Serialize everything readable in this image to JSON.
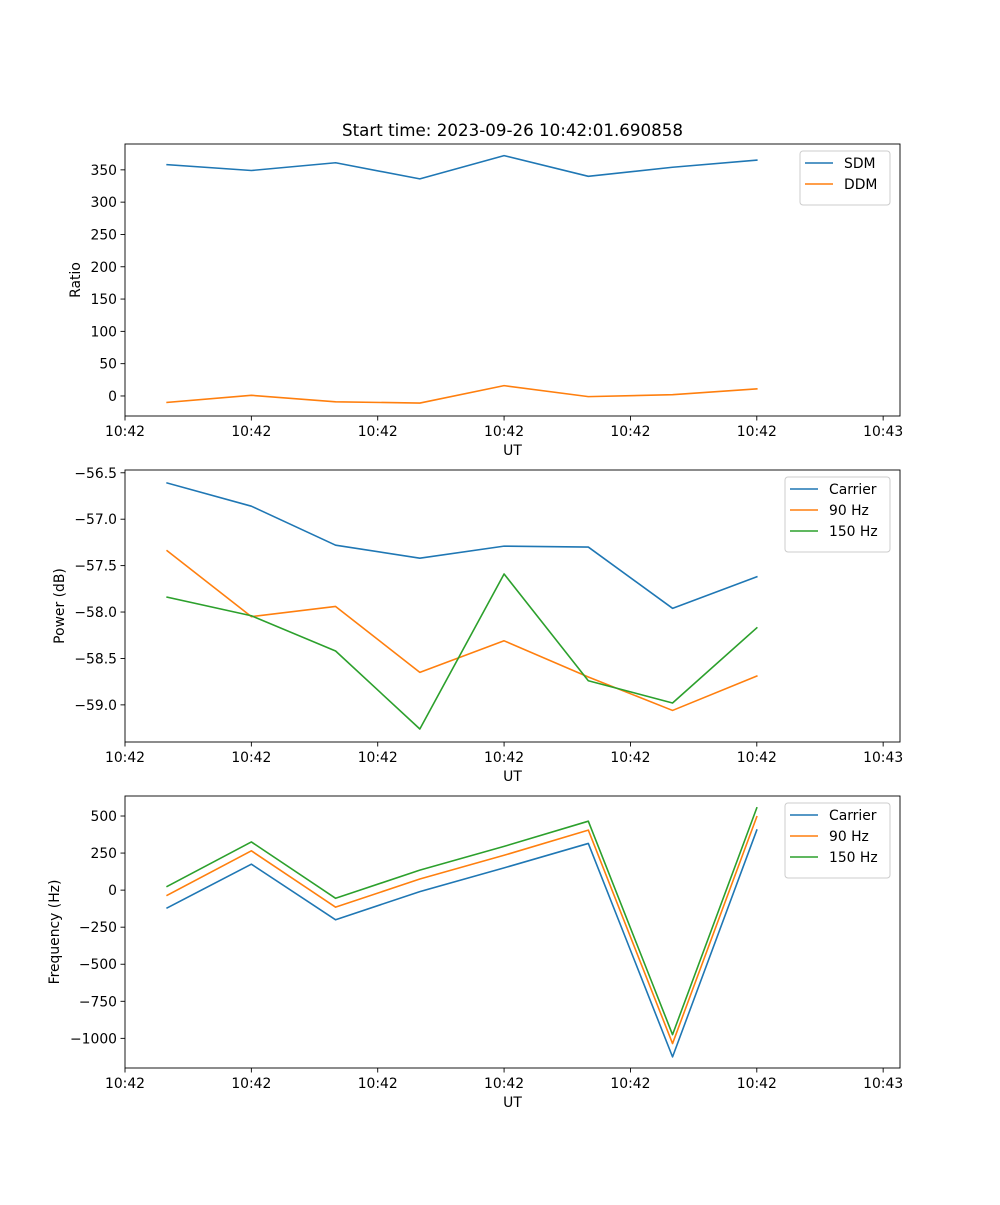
{
  "figure_title": "Start time: 2023-09-26 10:42:01.690858",
  "colors": {
    "blue": "#1f77b4",
    "orange": "#ff7f0e",
    "green": "#2ca02c"
  },
  "chart_data": [
    {
      "type": "line",
      "title": "Start time: 2023-09-26 10:42:01.690858",
      "xlabel": "UT",
      "ylabel": "Ratio",
      "xlim": [
        0,
        9.2
      ],
      "ylim": [
        -31,
        390
      ],
      "x": [
        0.5,
        1.5,
        2.5,
        3.5,
        4.5,
        5.5,
        6.5,
        7.5
      ],
      "xticks": [
        0,
        1.5,
        3,
        4.5,
        6,
        7.5,
        9
      ],
      "xtick_labels": [
        "10:42",
        "10:42",
        "10:42",
        "10:42",
        "10:42",
        "10:42",
        "10:43"
      ],
      "yticks": [
        0,
        50,
        100,
        150,
        200,
        250,
        300,
        350
      ],
      "ytick_labels": [
        "0",
        "50",
        "100",
        "150",
        "200",
        "250",
        "300",
        "350"
      ],
      "legend": "top-right",
      "grid": false,
      "series": [
        {
          "name": "SDM",
          "color": "#1f77b4",
          "values": [
            358,
            349,
            361,
            336,
            372,
            340,
            354,
            365
          ]
        },
        {
          "name": "DDM",
          "color": "#ff7f0e",
          "values": [
            -10,
            1,
            -9,
            -11,
            16,
            -1,
            2,
            11
          ]
        }
      ]
    },
    {
      "type": "line",
      "title": "",
      "xlabel": "UT",
      "ylabel": "Power (dB)",
      "xlim": [
        0,
        9.2
      ],
      "ylim": [
        -59.4,
        -56.47
      ],
      "x": [
        0.5,
        1.5,
        2.5,
        3.5,
        4.5,
        5.5,
        6.5,
        7.5
      ],
      "xticks": [
        0,
        1.5,
        3,
        4.5,
        6,
        7.5,
        9
      ],
      "xtick_labels": [
        "10:42",
        "10:42",
        "10:42",
        "10:42",
        "10:42",
        "10:42",
        "10:43"
      ],
      "yticks": [
        -59.0,
        -58.5,
        -58.0,
        -57.5,
        -57.0,
        -56.5
      ],
      "ytick_labels": [
        "−59.0",
        "−58.5",
        "−58.0",
        "−57.5",
        "−57.0",
        "−56.5"
      ],
      "legend": "top-right",
      "grid": false,
      "series": [
        {
          "name": "Carrier",
          "color": "#1f77b4",
          "values": [
            -56.61,
            -56.86,
            -57.28,
            -57.42,
            -57.29,
            -57.3,
            -57.96,
            -57.62
          ]
        },
        {
          "name": "90 Hz",
          "color": "#ff7f0e",
          "values": [
            -57.34,
            -58.05,
            -57.94,
            -58.65,
            -58.31,
            -58.7,
            -59.06,
            -58.69
          ]
        },
        {
          "name": "150 Hz",
          "color": "#2ca02c",
          "values": [
            -57.84,
            -58.04,
            -58.42,
            -59.26,
            -57.59,
            -58.74,
            -58.98,
            -58.17
          ]
        }
      ]
    },
    {
      "type": "line",
      "title": "",
      "xlabel": "UT",
      "ylabel": "Frequency (Hz)",
      "xlim": [
        0,
        9.2
      ],
      "ylim": [
        -1200,
        635
      ],
      "x": [
        0.5,
        1.5,
        2.5,
        3.5,
        4.5,
        5.5,
        6.5,
        7.5
      ],
      "xticks": [
        0,
        1.5,
        3,
        4.5,
        6,
        7.5,
        9
      ],
      "xtick_labels": [
        "10:42",
        "10:42",
        "10:42",
        "10:42",
        "10:42",
        "10:42",
        "10:43"
      ],
      "yticks": [
        -1000,
        -750,
        -500,
        -250,
        0,
        250,
        500
      ],
      "ytick_labels": [
        "−1000",
        "−750",
        "−500",
        "−250",
        "0",
        "250",
        "500"
      ],
      "legend": "top-right",
      "grid": false,
      "series": [
        {
          "name": "Carrier",
          "color": "#1f77b4",
          "values": [
            -120,
            175,
            -200,
            -10,
            150,
            315,
            -1125,
            405
          ]
        },
        {
          "name": "90 Hz",
          "color": "#ff7f0e",
          "values": [
            -35,
            265,
            -115,
            75,
            235,
            405,
            -1035,
            495
          ]
        },
        {
          "name": "150 Hz",
          "color": "#2ca02c",
          "values": [
            25,
            325,
            -55,
            135,
            295,
            465,
            -975,
            555
          ]
        }
      ]
    }
  ]
}
